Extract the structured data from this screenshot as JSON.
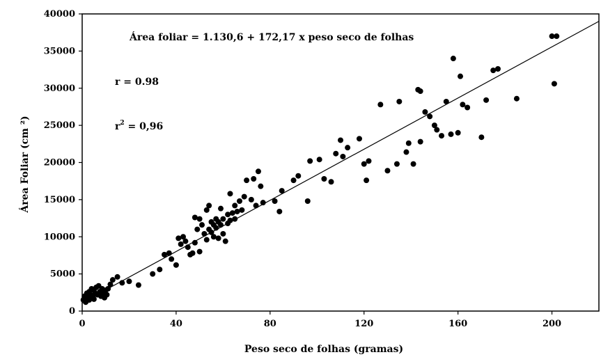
{
  "chart_data": {
    "type": "scatter",
    "xlabel": "Peso seco de folhas (gramas)",
    "ylabel": "Área Foliar (cm ²)",
    "xlim": [
      0,
      220
    ],
    "ylim": [
      0,
      40000
    ],
    "xticks": [
      0,
      40,
      80,
      120,
      160,
      200
    ],
    "yticks": [
      0,
      5000,
      10000,
      15000,
      20000,
      25000,
      30000,
      35000,
      40000
    ],
    "grid": false,
    "legend": "none",
    "colors": {
      "points": "#000000",
      "line": "#000000",
      "background": "#ffffff"
    },
    "annotations": {
      "equation": "Área foliar  = 1.130,6 + 172,17 x peso seco de folhas",
      "r": "r = 0.98",
      "r2_base": "r",
      "r2_sup": "2",
      "r2_rest": " = 0,96"
    },
    "trendline": {
      "intercept": 1130.6,
      "slope": 172.17,
      "x_range": [
        0,
        220
      ]
    },
    "points": {
      "x": [
        0.5,
        1,
        1.5,
        2,
        2.5,
        3,
        3,
        3.5,
        4,
        4.5,
        5,
        5,
        5.5,
        6,
        6.5,
        7,
        7.5,
        8,
        8.5,
        9,
        9.5,
        10,
        10.5,
        11,
        12,
        13,
        15,
        17,
        20,
        24,
        30,
        33,
        35,
        37,
        38,
        40,
        41,
        42,
        43,
        44,
        45,
        46,
        47,
        48,
        48,
        49,
        50,
        50,
        51,
        52,
        53,
        53,
        54,
        54,
        55,
        55,
        56,
        56,
        57,
        57,
        58,
        58,
        59,
        59,
        60,
        60,
        61,
        62,
        62,
        63,
        63,
        64,
        65,
        65,
        66,
        67,
        68,
        69,
        70,
        72,
        73,
        74,
        75,
        76,
        77,
        82,
        84,
        85,
        90,
        92,
        96,
        97,
        101,
        103,
        106,
        108,
        110,
        111,
        113,
        118,
        120,
        121,
        122,
        127,
        130,
        134,
        135,
        138,
        139,
        141,
        143,
        144,
        144,
        146,
        148,
        150,
        151,
        153,
        155,
        157,
        158,
        160,
        161,
        162,
        164,
        170,
        172,
        175,
        177,
        185,
        200,
        201,
        202
      ],
      "y": [
        1500,
        2000,
        1200,
        2400,
        1800,
        2600,
        1500,
        2200,
        3000,
        2000,
        2800,
        1600,
        2400,
        3200,
        2200,
        3400,
        2600,
        2000,
        3000,
        2400,
        1800,
        2800,
        2200,
        3000,
        3600,
        4200,
        4600,
        3800,
        4000,
        3500,
        5000,
        5600,
        7600,
        7800,
        7000,
        6200,
        9800,
        9000,
        10000,
        9400,
        8600,
        7600,
        7800,
        12600,
        9200,
        11000,
        12400,
        8000,
        11600,
        10400,
        13600,
        9600,
        11000,
        14200,
        10600,
        12000,
        11600,
        10000,
        12400,
        11200,
        9800,
        12000,
        11600,
        13800,
        10400,
        12400,
        9400,
        11800,
        13000,
        15800,
        12200,
        13200,
        14200,
        12400,
        13400,
        14800,
        13600,
        15400,
        17600,
        15000,
        17800,
        14200,
        18800,
        16800,
        14600,
        14800,
        13400,
        16200,
        17600,
        18200,
        14800,
        20200,
        20400,
        17800,
        17400,
        21200,
        23000,
        20800,
        22000,
        23200,
        19800,
        17600,
        20200,
        27800,
        18900,
        19800,
        28200,
        21400,
        22600,
        19800,
        29800,
        22800,
        29600,
        26800,
        26200,
        25000,
        24400,
        23600,
        28200,
        23800,
        34000,
        24000,
        31600,
        27800,
        27400,
        23400,
        28400,
        32400,
        32600,
        28600,
        37000,
        30600,
        37000
      ]
    }
  }
}
